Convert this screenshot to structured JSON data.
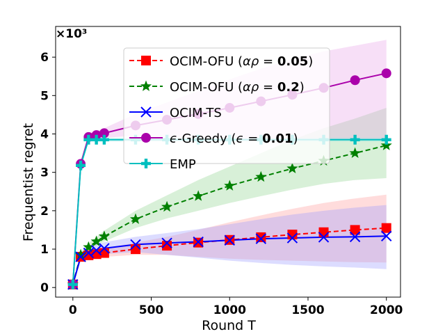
{
  "chart_data": {
    "type": "line",
    "xlabel": "Round T",
    "ylabel": "Frequentist regret",
    "y_scale_label": "×10³",
    "xlim": [
      -110,
      2090
    ],
    "ylim": [
      -0.25,
      6.8
    ],
    "x_ticks": [
      0,
      500,
      1000,
      1500,
      2000
    ],
    "x_tick_labels": [
      "0",
      "500",
      "1000",
      "1500",
      "2000"
    ],
    "y_ticks": [
      0,
      1,
      2,
      3,
      4,
      5,
      6
    ],
    "y_tick_labels": [
      "0",
      "1",
      "2",
      "3",
      "4",
      "5",
      "6"
    ],
    "grid": false,
    "legend_position": "top-center",
    "series": [
      {
        "name": "OCIM-OFU (αρ = 0.05)",
        "legend_prefix": "OCIM-OFU (",
        "legend_math": "αρ",
        "legend_mid": " = ",
        "legend_bold": "0.05",
        "legend_suffix": ")",
        "color": "#ff0000",
        "band_color": "#ff9a9a",
        "linestyle": "dashed",
        "marker": "square",
        "x": [
          0,
          50,
          100,
          150,
          200,
          400,
          600,
          800,
          1000,
          1200,
          1400,
          1600,
          1800,
          2000
        ],
        "y": [
          0.08,
          0.8,
          0.84,
          0.87,
          0.9,
          1.0,
          1.09,
          1.17,
          1.24,
          1.31,
          1.38,
          1.44,
          1.5,
          1.55
        ],
        "lower": [
          0.05,
          0.7,
          0.74,
          0.77,
          0.8,
          0.85,
          0.85,
          0.8,
          0.75,
          0.72,
          0.7,
          0.68,
          0.66,
          0.65
        ],
        "upper": [
          0.12,
          0.92,
          0.96,
          0.99,
          1.02,
          1.17,
          1.32,
          1.5,
          1.7,
          1.88,
          2.05,
          2.2,
          2.32,
          2.42
        ]
      },
      {
        "name": "OCIM-OFU (αρ = 0.2)",
        "legend_prefix": "OCIM-OFU (",
        "legend_math": "αρ",
        "legend_mid": " = ",
        "legend_bold": "0.2",
        "legend_suffix": ")",
        "color": "#008000",
        "band_color": "#8fd38f",
        "linestyle": "dashed",
        "marker": "star",
        "x": [
          0,
          50,
          100,
          150,
          200,
          400,
          600,
          800,
          1000,
          1200,
          1400,
          1600,
          1800,
          2000
        ],
        "y": [
          0.08,
          0.85,
          1.05,
          1.2,
          1.33,
          1.78,
          2.1,
          2.38,
          2.65,
          2.88,
          3.1,
          3.3,
          3.5,
          3.7
        ],
        "lower": [
          0.05,
          0.8,
          0.96,
          1.1,
          1.2,
          1.55,
          1.8,
          2.0,
          2.2,
          2.38,
          2.55,
          2.7,
          2.8,
          2.85
        ],
        "upper": [
          0.12,
          0.92,
          1.15,
          1.32,
          1.48,
          2.0,
          2.4,
          2.8,
          3.15,
          3.5,
          3.85,
          4.15,
          4.4,
          4.68
        ]
      },
      {
        "name": "OCIM-TS",
        "legend_prefix": "OCIM-TS",
        "color": "#0000ff",
        "band_color": "#9a9aff",
        "linestyle": "solid",
        "marker": "x",
        "x": [
          0,
          50,
          100,
          150,
          200,
          400,
          600,
          800,
          1000,
          1200,
          1400,
          1600,
          1800,
          2000
        ],
        "y": [
          0.08,
          0.8,
          0.9,
          0.97,
          1.02,
          1.12,
          1.16,
          1.19,
          1.23,
          1.27,
          1.29,
          1.31,
          1.32,
          1.34
        ],
        "lower": [
          0.05,
          0.7,
          0.78,
          0.83,
          0.87,
          0.92,
          0.85,
          0.78,
          0.7,
          0.64,
          0.59,
          0.55,
          0.52,
          0.48
        ],
        "upper": [
          0.12,
          0.92,
          1.02,
          1.12,
          1.18,
          1.32,
          1.42,
          1.52,
          1.65,
          1.78,
          1.9,
          2.0,
          2.08,
          2.15
        ]
      },
      {
        "name": "ϵ-Greedy (ϵ = 0.01)",
        "legend_prefix": "",
        "legend_math_lead": "ϵ",
        "legend_plain": "-Greedy (",
        "legend_math": "ϵ",
        "legend_mid": " = ",
        "legend_bold": "0.01",
        "legend_suffix": ")",
        "color": "#aa00aa",
        "band_color": "#e7a3e7",
        "linestyle": "solid",
        "marker": "circle",
        "x": [
          0,
          50,
          100,
          150,
          200,
          400,
          600,
          800,
          1000,
          1200,
          1400,
          1600,
          1800,
          2000
        ],
        "y": [
          0.08,
          3.22,
          3.92,
          3.97,
          4.02,
          4.22,
          4.37,
          4.52,
          4.68,
          4.85,
          5.02,
          5.2,
          5.4,
          5.58
        ],
        "lower": [
          0.05,
          3.15,
          3.82,
          3.87,
          3.9,
          3.95,
          3.92,
          3.9,
          3.88,
          3.87,
          3.86,
          3.85,
          3.85,
          3.85
        ],
        "upper": [
          0.12,
          3.3,
          4.02,
          4.08,
          4.15,
          4.52,
          4.82,
          5.12,
          5.42,
          5.7,
          5.95,
          6.15,
          6.3,
          6.45
        ]
      },
      {
        "name": "EMP",
        "legend_prefix": "EMP",
        "color": "#00bfbf",
        "band_color": "#99e6e6",
        "linestyle": "solid",
        "marker": "plus",
        "x": [
          0,
          50,
          100,
          150,
          200,
          400,
          600,
          800,
          1000,
          1200,
          1400,
          1600,
          1800,
          2000
        ],
        "y": [
          0.08,
          3.18,
          3.85,
          3.85,
          3.85,
          3.85,
          3.85,
          3.85,
          3.85,
          3.85,
          3.85,
          3.85,
          3.85,
          3.85
        ],
        "lower": [
          0.05,
          3.12,
          3.8,
          3.8,
          3.8,
          3.8,
          3.8,
          3.8,
          3.8,
          3.8,
          3.8,
          3.8,
          3.8,
          3.8
        ],
        "upper": [
          0.12,
          3.24,
          3.9,
          3.9,
          3.9,
          3.9,
          3.9,
          3.9,
          3.9,
          3.9,
          3.9,
          3.9,
          3.9,
          3.9
        ]
      }
    ]
  }
}
